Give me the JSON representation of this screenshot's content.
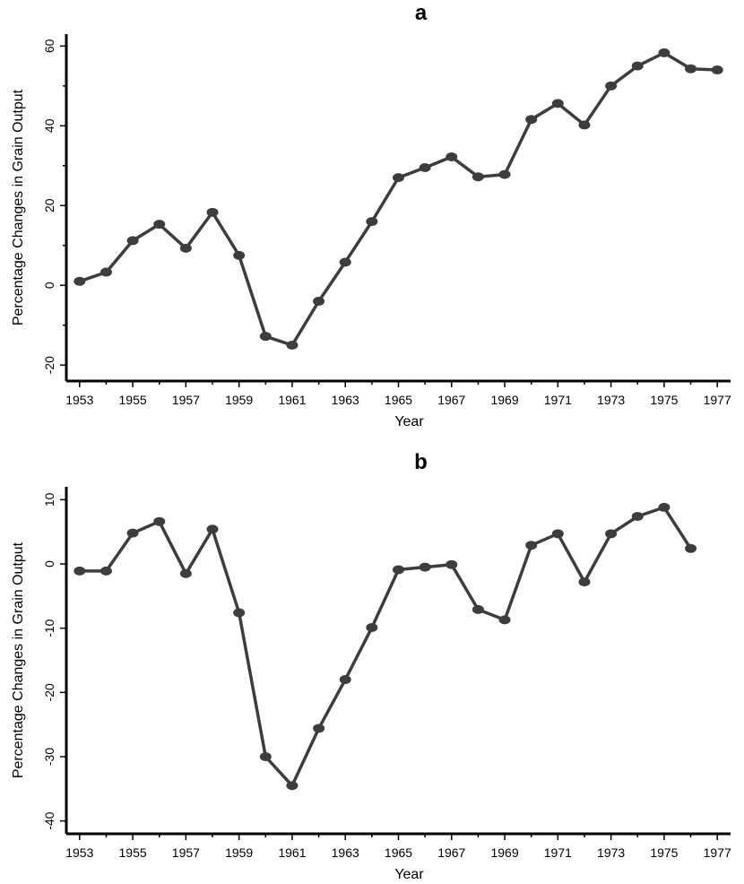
{
  "chart_data": [
    {
      "type": "line",
      "title": "a",
      "xlabel": "Year",
      "ylabel": "Percentage Changes in Grain Output",
      "xlim": [
        1952.5,
        1977.5
      ],
      "ylim": [
        -24,
        63
      ],
      "x_ticks": [
        1953,
        1955,
        1957,
        1959,
        1961,
        1963,
        1965,
        1967,
        1969,
        1971,
        1973,
        1975,
        1977
      ],
      "y_ticks": [
        -20,
        0,
        20,
        40,
        60
      ],
      "x_minor_ticks": [
        1954,
        1956,
        1958,
        1960,
        1962,
        1964,
        1966,
        1968,
        1970,
        1972,
        1974,
        1976
      ],
      "y_minor_ticks": [
        -10,
        10,
        30,
        50
      ],
      "grid": false,
      "series": [
        {
          "x": [
            1953,
            1954,
            1955,
            1956,
            1957,
            1958,
            1959,
            1960,
            1961,
            1962,
            1963,
            1964,
            1965,
            1966,
            1967,
            1968,
            1969,
            1970,
            1971,
            1972,
            1973,
            1974,
            1975,
            1976,
            1977
          ],
          "values": [
            1,
            3.3,
            11.2,
            15.3,
            9.3,
            18.3,
            7.5,
            -12.8,
            -15,
            -4,
            5.8,
            16,
            27,
            29.5,
            32.2,
            27.2,
            27.8,
            41.6,
            45.6,
            40.2,
            50,
            55,
            58.3,
            54.3,
            54
          ]
        }
      ]
    },
    {
      "type": "line",
      "title": "b",
      "xlabel": "Year",
      "ylabel": "Percentage Changes in Grain Output",
      "xlim": [
        1952.5,
        1977.5
      ],
      "ylim": [
        -42,
        12
      ],
      "x_ticks": [
        1953,
        1955,
        1957,
        1959,
        1961,
        1963,
        1965,
        1967,
        1969,
        1971,
        1973,
        1975,
        1977
      ],
      "y_ticks": [
        -40,
        -30,
        -20,
        -10,
        0,
        10
      ],
      "x_minor_ticks": [
        1954,
        1956,
        1958,
        1960,
        1962,
        1964,
        1966,
        1968,
        1970,
        1972,
        1974,
        1976
      ],
      "y_minor_ticks": [],
      "grid": false,
      "series": [
        {
          "x": [
            1953,
            1954,
            1955,
            1956,
            1957,
            1958,
            1959,
            1960,
            1961,
            1962,
            1963,
            1964,
            1965,
            1966,
            1967,
            1968,
            1969,
            1970,
            1971,
            1972,
            1973,
            1974,
            1975,
            1976
          ],
          "values": [
            -1.1,
            -1.1,
            4.8,
            6.6,
            -1.5,
            5.4,
            -7.6,
            -30,
            -34.5,
            -25.6,
            -18,
            -9.9,
            -0.9,
            -0.5,
            -0.1,
            -7.1,
            -8.7,
            2.9,
            4.7,
            -2.8,
            4.7,
            7.4,
            8.8,
            2.4
          ]
        }
      ]
    }
  ]
}
